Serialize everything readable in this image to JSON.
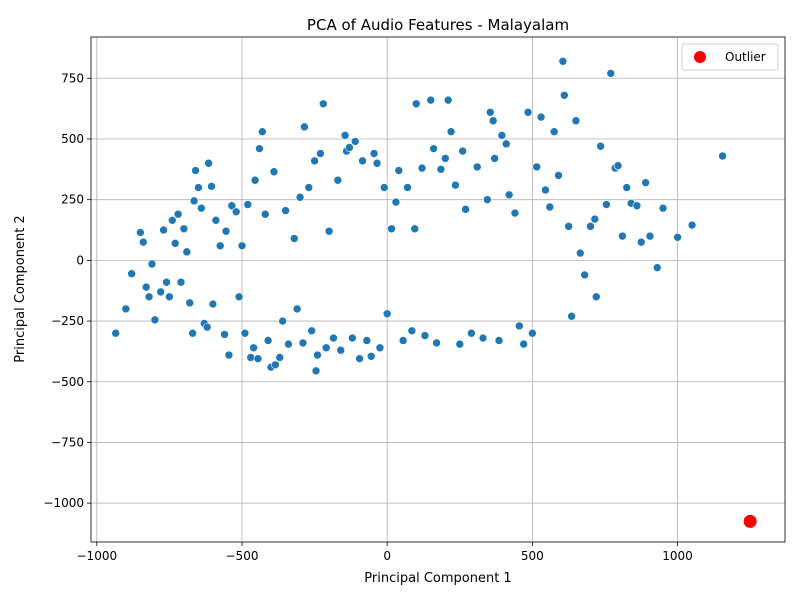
{
  "chart_data": {
    "type": "scatter",
    "title": "PCA of Audio Features - Malayalam",
    "xlabel": "Principal Component 1",
    "ylabel": "Principal Component 2",
    "xlim": [
      -1020,
      1370
    ],
    "ylim": [
      -1160,
      920
    ],
    "xticks": [
      -1000,
      -500,
      0,
      500,
      1000
    ],
    "yticks": [
      -1000,
      -750,
      -500,
      -250,
      0,
      250,
      500,
      750
    ],
    "grid": true,
    "legend": {
      "placement": "top-right",
      "entries": [
        "Outlier"
      ]
    },
    "colors": {
      "points": "#1f77b4",
      "outlier": "#ff0000"
    },
    "series": [
      {
        "values": [
          [
            -935,
            -300
          ],
          [
            -900,
            -200
          ],
          [
            -880,
            -55
          ],
          [
            -850,
            115
          ],
          [
            -840,
            75
          ],
          [
            -830,
            -110
          ],
          [
            -820,
            -150
          ],
          [
            -810,
            -15
          ],
          [
            -800,
            -245
          ],
          [
            -780,
            -130
          ],
          [
            -770,
            125
          ],
          [
            -760,
            -90
          ],
          [
            -750,
            -150
          ],
          [
            -740,
            165
          ],
          [
            -730,
            70
          ],
          [
            -720,
            190
          ],
          [
            -710,
            -90
          ],
          [
            -700,
            130
          ],
          [
            -690,
            35
          ],
          [
            -680,
            -175
          ],
          [
            -670,
            -300
          ],
          [
            -665,
            245
          ],
          [
            -660,
            370
          ],
          [
            -650,
            300
          ],
          [
            -640,
            215
          ],
          [
            -630,
            -260
          ],
          [
            -620,
            -275
          ],
          [
            -615,
            400
          ],
          [
            -605,
            305
          ],
          [
            -600,
            -180
          ],
          [
            -590,
            165
          ],
          [
            -575,
            60
          ],
          [
            -560,
            -305
          ],
          [
            -555,
            120
          ],
          [
            -545,
            -390
          ],
          [
            -535,
            225
          ],
          [
            -520,
            200
          ],
          [
            -510,
            -150
          ],
          [
            -500,
            60
          ],
          [
            -490,
            -300
          ],
          [
            -480,
            230
          ],
          [
            -470,
            -400
          ],
          [
            -460,
            -360
          ],
          [
            -455,
            330
          ],
          [
            -445,
            -405
          ],
          [
            -440,
            460
          ],
          [
            -430,
            530
          ],
          [
            -420,
            190
          ],
          [
            -410,
            -330
          ],
          [
            -400,
            -440
          ],
          [
            -390,
            365
          ],
          [
            -385,
            -430
          ],
          [
            -370,
            -400
          ],
          [
            -360,
            -250
          ],
          [
            -350,
            205
          ],
          [
            -340,
            -345
          ],
          [
            -320,
            90
          ],
          [
            -310,
            -200
          ],
          [
            -300,
            260
          ],
          [
            -290,
            -340
          ],
          [
            -285,
            550
          ],
          [
            -270,
            300
          ],
          [
            -260,
            -290
          ],
          [
            -250,
            410
          ],
          [
            -245,
            -455
          ],
          [
            -240,
            -390
          ],
          [
            -230,
            440
          ],
          [
            -220,
            645
          ],
          [
            -210,
            -360
          ],
          [
            -200,
            120
          ],
          [
            -185,
            -320
          ],
          [
            -170,
            330
          ],
          [
            -160,
            -370
          ],
          [
            -145,
            515
          ],
          [
            -140,
            450
          ],
          [
            -130,
            465
          ],
          [
            -120,
            -320
          ],
          [
            -110,
            490
          ],
          [
            -95,
            -405
          ],
          [
            -85,
            410
          ],
          [
            -70,
            -330
          ],
          [
            -55,
            -395
          ],
          [
            -45,
            440
          ],
          [
            -35,
            400
          ],
          [
            -25,
            -360
          ],
          [
            -10,
            300
          ],
          [
            0,
            -220
          ],
          [
            15,
            130
          ],
          [
            30,
            240
          ],
          [
            40,
            370
          ],
          [
            55,
            -330
          ],
          [
            70,
            300
          ],
          [
            85,
            -290
          ],
          [
            95,
            130
          ],
          [
            100,
            645
          ],
          [
            120,
            380
          ],
          [
            130,
            -310
          ],
          [
            150,
            660
          ],
          [
            160,
            460
          ],
          [
            170,
            -340
          ],
          [
            185,
            375
          ],
          [
            200,
            420
          ],
          [
            210,
            660
          ],
          [
            220,
            530
          ],
          [
            235,
            310
          ],
          [
            250,
            -345
          ],
          [
            260,
            450
          ],
          [
            270,
            210
          ],
          [
            290,
            -300
          ],
          [
            310,
            385
          ],
          [
            330,
            -320
          ],
          [
            345,
            250
          ],
          [
            355,
            610
          ],
          [
            365,
            575
          ],
          [
            370,
            420
          ],
          [
            385,
            -330
          ],
          [
            395,
            515
          ],
          [
            410,
            480
          ],
          [
            420,
            270
          ],
          [
            440,
            195
          ],
          [
            455,
            -270
          ],
          [
            470,
            -345
          ],
          [
            485,
            610
          ],
          [
            500,
            -300
          ],
          [
            515,
            385
          ],
          [
            530,
            590
          ],
          [
            545,
            290
          ],
          [
            560,
            220
          ],
          [
            575,
            530
          ],
          [
            590,
            350
          ],
          [
            605,
            820
          ],
          [
            610,
            680
          ],
          [
            625,
            140
          ],
          [
            635,
            -230
          ],
          [
            650,
            575
          ],
          [
            665,
            30
          ],
          [
            680,
            -60
          ],
          [
            700,
            140
          ],
          [
            715,
            170
          ],
          [
            720,
            -150
          ],
          [
            735,
            470
          ],
          [
            755,
            230
          ],
          [
            770,
            770
          ],
          [
            785,
            380
          ],
          [
            795,
            390
          ],
          [
            810,
            100
          ],
          [
            825,
            300
          ],
          [
            840,
            235
          ],
          [
            860,
            225
          ],
          [
            875,
            75
          ],
          [
            890,
            320
          ],
          [
            905,
            100
          ],
          [
            930,
            -30
          ],
          [
            950,
            215
          ],
          [
            1000,
            95
          ],
          [
            1050,
            145
          ],
          [
            1155,
            430
          ]
        ]
      },
      {
        "name": "Outlier",
        "values": [
          [
            1250,
            -1075
          ]
        ]
      }
    ]
  }
}
